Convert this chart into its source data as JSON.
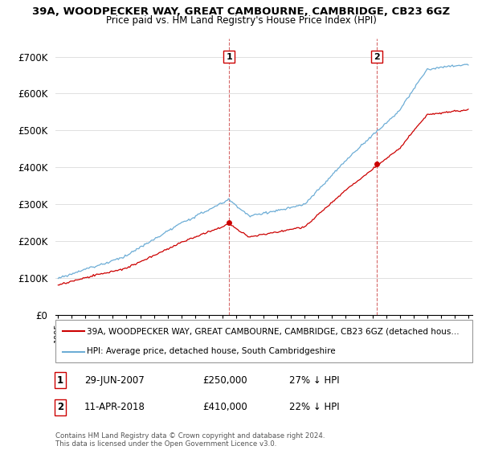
{
  "title": "39A, WOODPECKER WAY, GREAT CAMBOURNE, CAMBRIDGE, CB23 6GZ",
  "subtitle": "Price paid vs. HM Land Registry's House Price Index (HPI)",
  "legend_property": "39A, WOODPECKER WAY, GREAT CAMBOURNE, CAMBRIDGE, CB23 6GZ (detached hous…",
  "legend_hpi": "HPI: Average price, detached house, South Cambridgeshire",
  "sale1_date": "29-JUN-2007",
  "sale1_price": 250000,
  "sale1_label": "27% ↓ HPI",
  "sale2_date": "11-APR-2018",
  "sale2_price": 410000,
  "sale2_label": "22% ↓ HPI",
  "copyright": "Contains HM Land Registry data © Crown copyright and database right 2024.\nThis data is licensed under the Open Government Licence v3.0.",
  "hpi_color": "#6dadd6",
  "property_color": "#cc0000",
  "marker_color": "#cc0000",
  "ylim": [
    0,
    750000
  ],
  "yticks": [
    0,
    100000,
    200000,
    300000,
    400000,
    500000,
    600000,
    700000
  ],
  "sale1_x": 2007.5,
  "sale2_x": 2018.3,
  "xmin": 1994.8,
  "xmax": 2025.3
}
